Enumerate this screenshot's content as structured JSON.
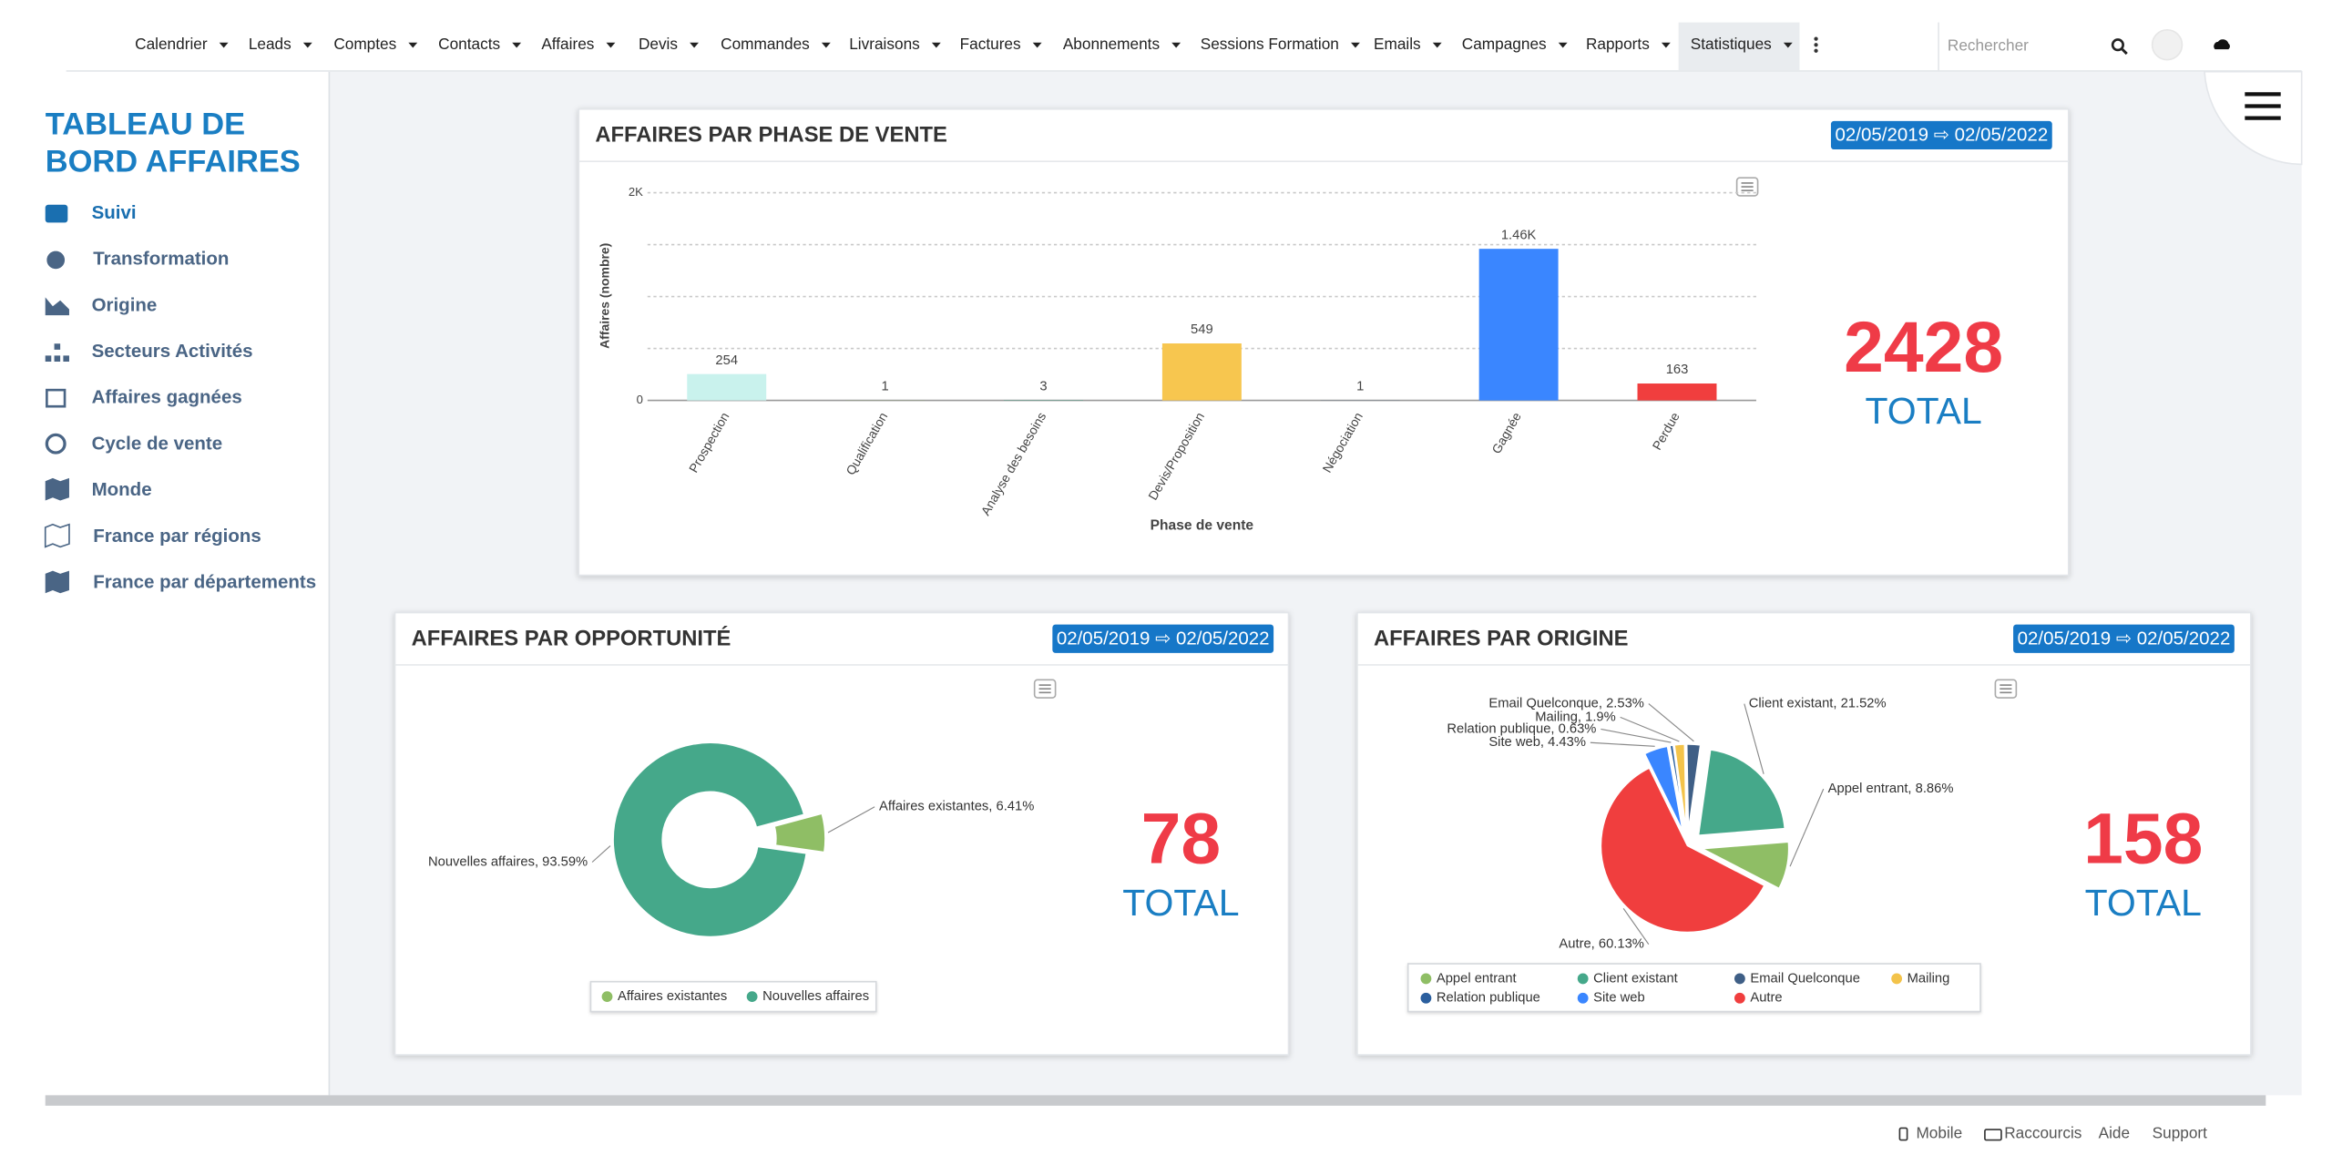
{
  "nav": {
    "items": [
      "Calendrier",
      "Leads",
      "Comptes",
      "Contacts",
      "Affaires",
      "Devis",
      "Commandes",
      "Livraisons",
      "Factures",
      "Abonnements",
      "Sessions Formation",
      "Emails",
      "Campagnes",
      "Rapports",
      "Statistiques"
    ],
    "search_placeholder": "Rechercher"
  },
  "sidebar": {
    "title": "TABLEAU DE BORD AFFAIRES",
    "items": [
      "Suivi",
      "Transformation",
      "Origine",
      "Secteurs Activités",
      "Affaires gagnées",
      "Cycle de vente",
      "Monde",
      "France par régions",
      "France par départements"
    ]
  },
  "footer": {
    "items": [
      "Mobile",
      "Raccourcis",
      "Aide",
      "Support"
    ]
  },
  "chart_data": [
    {
      "type": "bar",
      "title": "AFFAIRES PAR PHASE DE VENTE",
      "date_range": "02/05/2019 ⇨ 02/05/2022",
      "categories": [
        "Prospection",
        "Qualification",
        "Analyse des besoins",
        "Devis/Proposition",
        "Négociation",
        "Gagnée",
        "Perdue"
      ],
      "values": [
        254,
        1,
        3,
        549,
        1,
        1460,
        163
      ],
      "value_labels": [
        "254",
        "1",
        "3",
        "549",
        "1",
        "1.46K",
        "163"
      ],
      "colors": [
        "#c9f2ed",
        "#8fbe65",
        "#45a88a",
        "#f7c64f",
        "#3f5f86",
        "#3a86ff",
        "#f03e3e"
      ],
      "xlabel": "Phase de vente",
      "ylabel": "Affaires (nombre)",
      "ylim": [
        0,
        2000
      ],
      "yticks": [
        0,
        {
          "value": 2000,
          "label": "2K"
        }
      ],
      "minor_gridlines": [
        500,
        1000,
        1500
      ],
      "grid": true,
      "total": "2428",
      "total_label": "TOTAL"
    },
    {
      "type": "pie",
      "donut": true,
      "title": "AFFAIRES PAR OPPORTUNITÉ",
      "date_range": "02/05/2019 ⇨ 02/05/2022",
      "categories": [
        "Affaires existantes",
        "Nouvelles affaires"
      ],
      "values": [
        6.41,
        93.59
      ],
      "value_labels": [
        "Affaires existantes, 6.41%",
        "Nouvelles affaires, 93.59%"
      ],
      "colors": [
        "#8fbe65",
        "#45a88a"
      ],
      "legend": [
        "Affaires existantes",
        "Nouvelles affaires"
      ],
      "total": "78",
      "total_label": "TOTAL"
    },
    {
      "type": "pie",
      "donut": false,
      "title": "AFFAIRES PAR ORIGINE",
      "date_range": "02/05/2019 ⇨ 02/05/2022",
      "categories": [
        "Client existant",
        "Appel entrant",
        "Autre",
        "Site web",
        "Relation publique",
        "Mailing",
        "Email Quelconque"
      ],
      "values": [
        21.52,
        8.86,
        60.13,
        4.43,
        0.63,
        1.9,
        2.53
      ],
      "value_labels": [
        "Client existant, 21.52%",
        "Appel entrant, 8.86%",
        "Autre, 60.13%",
        "Site web, 4.43%",
        "Relation publique, 0.63%",
        "Mailing, 1.9%",
        "Email Quelconque, 2.53%"
      ],
      "colors": [
        "#45a88a",
        "#8fbe65",
        "#f03e3e",
        "#3a86ff",
        "#2b5f9e",
        "#f3c34a",
        "#3f5f86"
      ],
      "legend": [
        "Appel entrant",
        "Client existant",
        "Email Quelconque",
        "Mailing",
        "Relation publique",
        "Site web",
        "Autre"
      ],
      "total": "158",
      "total_label": "TOTAL"
    }
  ]
}
